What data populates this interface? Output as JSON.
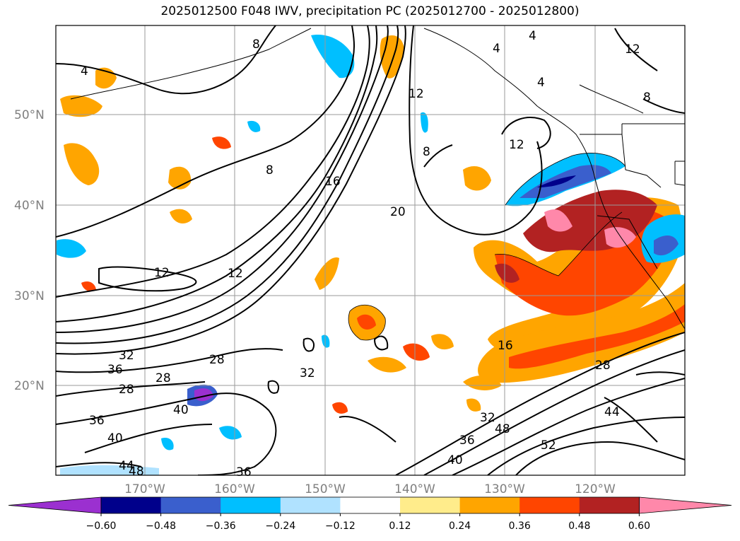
{
  "title": "2025012500 F048 IWV, precipitation PC (2025012700 - 2025012800)",
  "map": {
    "lat_labels": [
      "50°N",
      "40°N",
      "30°N",
      "20°N"
    ],
    "lon_labels": [
      "170°W",
      "160°W",
      "150°W",
      "140°W",
      "130°W",
      "120°W"
    ],
    "gridlines": true,
    "iwv_contour_labels": [
      "4",
      "4",
      "4",
      "4",
      "8",
      "8",
      "8",
      "8",
      "12",
      "12",
      "12",
      "12",
      "12",
      "16",
      "20",
      "16",
      "28",
      "28",
      "28",
      "28",
      "32",
      "32",
      "32",
      "36",
      "36",
      "36",
      "36",
      "40",
      "40",
      "40",
      "44",
      "44",
      "48",
      "48",
      "52"
    ]
  },
  "colorbar": {
    "ticks": [
      "−0.60",
      "−0.48",
      "−0.36",
      "−0.24",
      "−0.12",
      "0.12",
      "0.24",
      "0.36",
      "0.48",
      "0.60"
    ],
    "colors": [
      "#9b30d0",
      "#00008b",
      "#3a5fcd",
      "#00bfff",
      "#b0e2ff",
      "#ffffff",
      "#ffec8b",
      "#ffa500",
      "#ff4500",
      "#b22222",
      "#ff88aa"
    ]
  }
}
